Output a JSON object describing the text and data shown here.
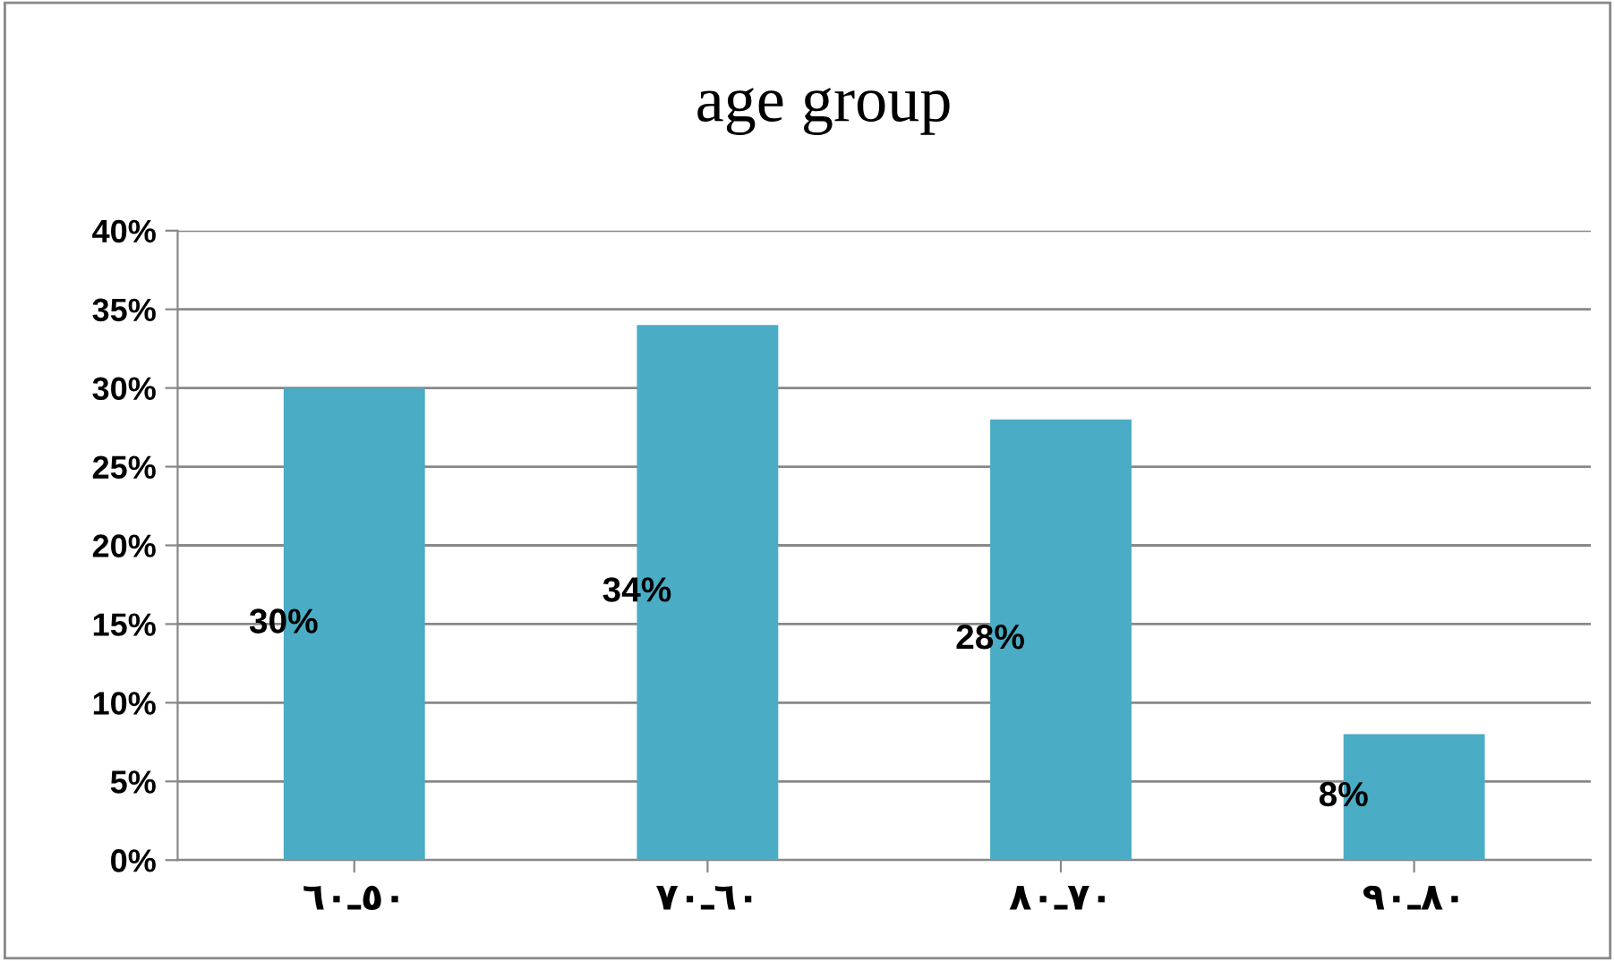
{
  "chart_data": {
    "type": "bar",
    "title": "age group",
    "categories": [
      "٦٠ـ٥٠",
      "٧٠ـ٦٠",
      "٨٠ـ٧٠",
      "٩٠ـ٨٠"
    ],
    "values": [
      30,
      34,
      28,
      8
    ],
    "color": "#4bacc6",
    "value_labels": [
      "30%",
      "34%",
      "28%",
      "8%"
    ],
    "ylim": [
      0,
      40
    ],
    "yticks": [
      {
        "value": 0,
        "label": "0%"
      },
      {
        "value": 5,
        "label": "5%"
      },
      {
        "value": 10,
        "label": "10%"
      },
      {
        "value": 15,
        "label": "15%"
      },
      {
        "value": 20,
        "label": "20%"
      },
      {
        "value": 25,
        "label": "25%"
      },
      {
        "value": 30,
        "label": "30%"
      },
      {
        "value": 35,
        "label": "35%"
      },
      {
        "value": 40,
        "label": "40%"
      }
    ],
    "grid": "y",
    "legend": false
  }
}
